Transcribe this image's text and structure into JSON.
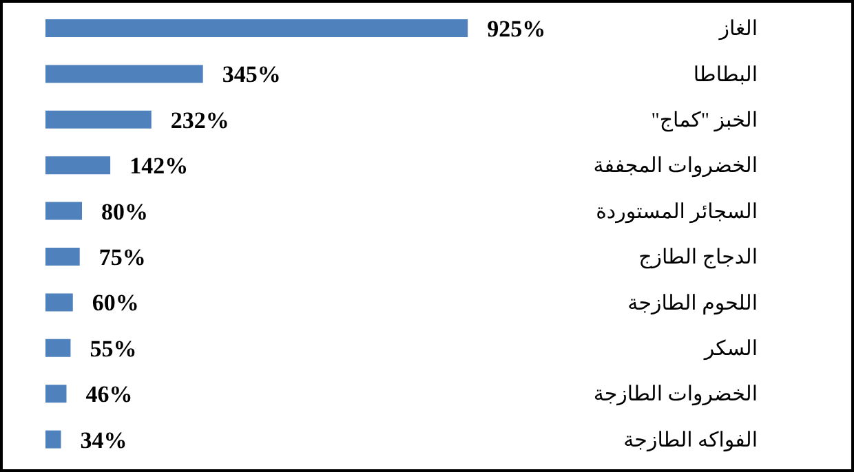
{
  "chart_data": {
    "type": "bar",
    "orientation": "horizontal",
    "categories": [
      "الغاز",
      "البطاطا",
      "الخبز \"كماج\"",
      "الخضروات المجففة",
      "السجائر المستوردة",
      "الدجاج الطازج",
      "اللحوم الطازجة",
      "السكر",
      "الخضروات الطازجة",
      "الفواكه الطازجة"
    ],
    "values": [
      925,
      345,
      232,
      142,
      80,
      75,
      60,
      55,
      46,
      34
    ],
    "value_labels": [
      "925%",
      "345%",
      "232%",
      "142%",
      "80%",
      "75%",
      "60%",
      "55%",
      "46%",
      "34%"
    ],
    "color": "#4f81bd"
  }
}
